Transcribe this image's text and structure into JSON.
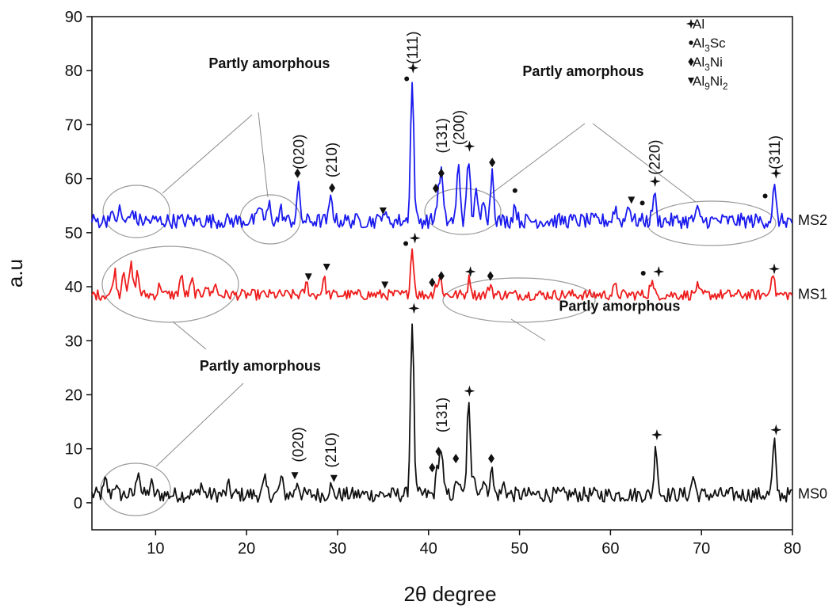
{
  "chart_data": {
    "type": "line",
    "xlabel": "2θ degree",
    "ylabel": "a.u",
    "xlim": [
      3,
      80
    ],
    "ylim": [
      -5,
      90
    ],
    "x_ticks": [
      10,
      20,
      30,
      40,
      50,
      60,
      70,
      80
    ],
    "y_ticks": [
      0,
      10,
      20,
      30,
      40,
      50,
      60,
      70,
      80,
      90
    ],
    "grid": false,
    "series": [
      {
        "name": "MS0",
        "color": "#111111",
        "baseline": 1.5,
        "noise": 1.4,
        "peaks": [
          [
            4.5,
            2.5
          ],
          [
            5.5,
            2
          ],
          [
            8.1,
            5
          ],
          [
            9.5,
            2
          ],
          [
            15,
            2
          ],
          [
            18,
            1.5
          ],
          [
            22,
            2.5
          ],
          [
            23.8,
            3
          ],
          [
            25.6,
            2.5
          ],
          [
            29.2,
            1.5
          ],
          [
            38.2,
            32.5
          ],
          [
            41,
            5
          ],
          [
            41.4,
            8
          ],
          [
            43.2,
            3
          ],
          [
            44.4,
            16.5
          ],
          [
            45,
            4.5
          ],
          [
            46,
            3
          ],
          [
            46.9,
            5
          ],
          [
            48.3,
            2
          ],
          [
            65,
            9
          ],
          [
            69.1,
            3.5
          ],
          [
            78,
            9.5
          ]
        ],
        "peak_labels": [
          [
            25.6,
            "(020)"
          ],
          [
            29.2,
            "(210)"
          ],
          [
            41.4,
            "(131)"
          ]
        ]
      },
      {
        "name": "MS1",
        "color": "#ee1c1c",
        "baseline": 38.5,
        "noise": 1.0,
        "peaks": [
          [
            5.5,
            4.5
          ],
          [
            6.5,
            5
          ],
          [
            7.3,
            5.5
          ],
          [
            8,
            4
          ],
          [
            10.5,
            2
          ],
          [
            12.8,
            3.5
          ],
          [
            14,
            2.5
          ],
          [
            15.5,
            2
          ],
          [
            16.5,
            2
          ],
          [
            26.6,
            2
          ],
          [
            28.5,
            3
          ],
          [
            38.2,
            8.5
          ],
          [
            40.8,
            2
          ],
          [
            41.3,
            3
          ],
          [
            44.5,
            3
          ],
          [
            46.8,
            2
          ],
          [
            60.5,
            1.5
          ],
          [
            64.5,
            2.5
          ],
          [
            69.5,
            1.5
          ],
          [
            77.8,
            4.5
          ]
        ],
        "peak_labels": []
      },
      {
        "name": "MS2",
        "color": "#1a1aee",
        "baseline": 52.2,
        "noise": 1.4,
        "peaks": [
          [
            5,
            1.5
          ],
          [
            6,
            2
          ],
          [
            7.5,
            2
          ],
          [
            21.5,
            3
          ],
          [
            22.5,
            3
          ],
          [
            23.8,
            2
          ],
          [
            25.7,
            6
          ],
          [
            29.3,
            4.5
          ],
          [
            35,
            2
          ],
          [
            38.2,
            25.5
          ],
          [
            41,
            4
          ],
          [
            41.4,
            9
          ],
          [
            43.3,
            10.5
          ],
          [
            44.4,
            11.5
          ],
          [
            45.2,
            5
          ],
          [
            46.1,
            4.5
          ],
          [
            47,
            9.5
          ],
          [
            49.5,
            3
          ],
          [
            60.5,
            2.5
          ],
          [
            62,
            3.5
          ],
          [
            64.8,
            5
          ],
          [
            69.5,
            2
          ],
          [
            78,
            6
          ]
        ],
        "peak_labels": [
          [
            25.7,
            "(020)"
          ],
          [
            29.3,
            "(210)"
          ],
          [
            38.2,
            "(111)"
          ],
          [
            41.4,
            "(131)"
          ],
          [
            43.3,
            "(200)"
          ],
          [
            64.8,
            "(220)"
          ],
          [
            78,
            "(311)"
          ]
        ]
      }
    ],
    "markers": {
      "star": [
        [
          38.3,
          80.5
        ],
        [
          44.5,
          66
        ],
        [
          64.9,
          59.5
        ],
        [
          78.2,
          61
        ],
        [
          38.5,
          49
        ],
        [
          44.6,
          42.8
        ],
        [
          65.3,
          42.8
        ],
        [
          78,
          43.3
        ],
        [
          38.4,
          36
        ],
        [
          44.5,
          20.7
        ],
        [
          65.1,
          12.6
        ],
        [
          78.2,
          13.5
        ]
      ],
      "dot": [
        [
          37.6,
          78.5
        ],
        [
          49.5,
          57.8
        ],
        [
          63.5,
          55.5
        ],
        [
          77,
          56.8
        ],
        [
          37.5,
          48
        ],
        [
          63.6,
          42.5
        ]
      ],
      "diamond": [
        [
          25.6,
          61
        ],
        [
          29.4,
          58.3
        ],
        [
          41.4,
          61
        ],
        [
          40.8,
          58.2
        ],
        [
          47,
          63
        ],
        [
          40.4,
          40.8
        ],
        [
          41.4,
          42
        ],
        [
          46.8,
          42
        ],
        [
          40.4,
          6.5
        ],
        [
          41.1,
          9.5
        ],
        [
          43,
          8.2
        ],
        [
          46.9,
          8.2
        ]
      ],
      "triangle": [
        [
          35,
          54
        ],
        [
          62.3,
          56
        ],
        [
          26.8,
          41.8
        ],
        [
          28.8,
          43.6
        ],
        [
          35.2,
          40.3
        ],
        [
          25.3,
          5
        ],
        [
          29.6,
          4.5
        ]
      ]
    },
    "legend": {
      "position": "top-right",
      "entries": [
        {
          "symbol": "star",
          "label": "Al",
          "sub": ""
        },
        {
          "symbol": "dot",
          "label": "Al",
          "sub": "3",
          "rest": "Sc"
        },
        {
          "symbol": "diamond",
          "label": "Al",
          "sub": "3",
          "rest": "Ni"
        },
        {
          "symbol": "triangle",
          "label": "Al",
          "sub": "9",
          "rest": "Ni",
          "sub2": "2"
        }
      ]
    },
    "annotations": [
      {
        "text": "Partly amorphous",
        "at": [
          22.5,
          80.5
        ]
      },
      {
        "text": "Partly amorphous",
        "at": [
          57,
          79
        ]
      },
      {
        "text": "Partly amorphous",
        "at": [
          61,
          35.5
        ]
      },
      {
        "text": "Partly amorphous",
        "at": [
          21.5,
          24.5
        ]
      }
    ]
  }
}
